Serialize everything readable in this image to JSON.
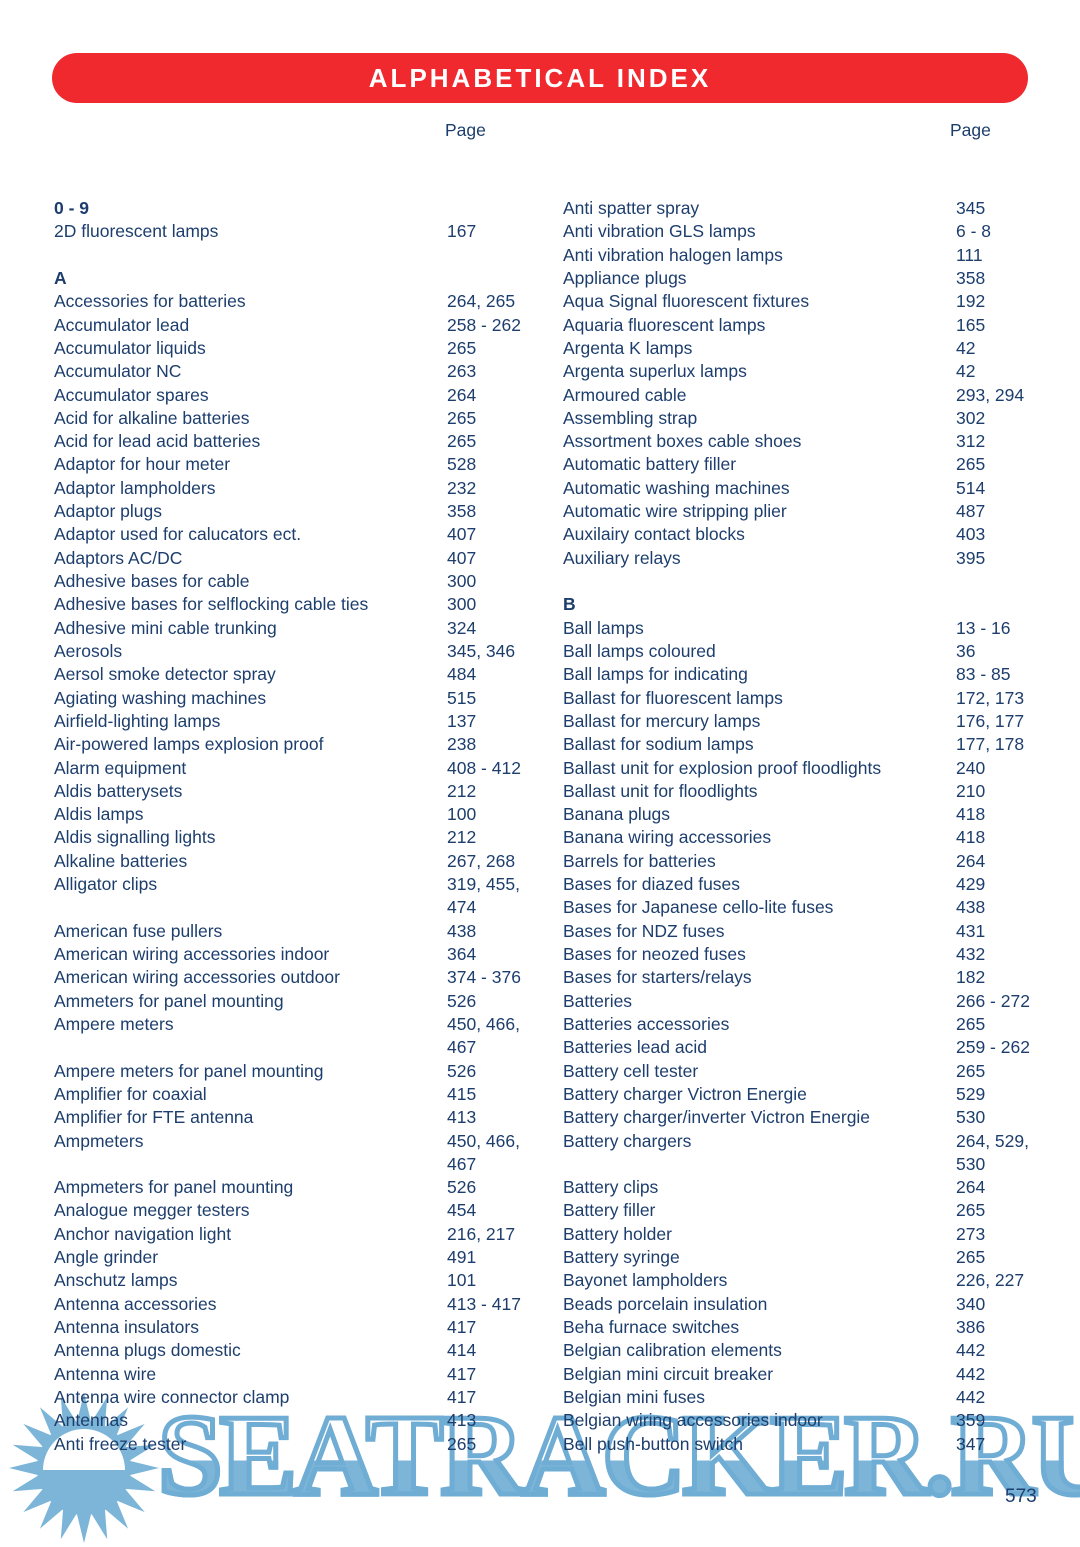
{
  "header": {
    "title": "ALPHABETICAL INDEX",
    "page_label": "Page"
  },
  "index": {
    "left": [
      {
        "type": "section",
        "label": "0 - 9"
      },
      {
        "type": "entry",
        "label": "2D fluorescent lamps",
        "pages": "167"
      },
      {
        "type": "section",
        "label": "A"
      },
      {
        "type": "entry",
        "label": "Accessories for batteries",
        "pages": "264, 265"
      },
      {
        "type": "entry",
        "label": "Accumulator lead",
        "pages": "258 - 262"
      },
      {
        "type": "entry",
        "label": "Accumulator liquids",
        "pages": "265"
      },
      {
        "type": "entry",
        "label": "Accumulator NC",
        "pages": "263"
      },
      {
        "type": "entry",
        "label": "Accumulator spares",
        "pages": "264"
      },
      {
        "type": "entry",
        "label": "Acid for alkaline batteries",
        "pages": "265"
      },
      {
        "type": "entry",
        "label": "Acid for lead acid batteries",
        "pages": "265"
      },
      {
        "type": "entry",
        "label": "Adaptor for hour meter",
        "pages": "528"
      },
      {
        "type": "entry",
        "label": "Adaptor lampholders",
        "pages": "232"
      },
      {
        "type": "entry",
        "label": "Adaptor plugs",
        "pages": "358"
      },
      {
        "type": "entry",
        "label": "Adaptor used for calucators ect.",
        "pages": "407"
      },
      {
        "type": "entry",
        "label": "Adaptors AC/DC",
        "pages": "407"
      },
      {
        "type": "entry",
        "label": "Adhesive bases for cable",
        "pages": "300"
      },
      {
        "type": "entry",
        "label": "Adhesive bases for selflocking cable ties",
        "pages": "300"
      },
      {
        "type": "entry",
        "label": "Adhesive mini cable trunking",
        "pages": "324"
      },
      {
        "type": "entry",
        "label": "Aerosols",
        "pages": "345, 346"
      },
      {
        "type": "entry",
        "label": "Aersol smoke detector spray",
        "pages": "484"
      },
      {
        "type": "entry",
        "label": "Agiating washing machines",
        "pages": "515"
      },
      {
        "type": "entry",
        "label": "Airfield-lighting lamps",
        "pages": "137"
      },
      {
        "type": "entry",
        "label": "Air-powered lamps explosion proof",
        "pages": "238"
      },
      {
        "type": "entry",
        "label": "Alarm equipment",
        "pages": "408 - 412"
      },
      {
        "type": "entry",
        "label": "Aldis batterysets",
        "pages": "212"
      },
      {
        "type": "entry",
        "label": "Aldis lamps",
        "pages": "100"
      },
      {
        "type": "entry",
        "label": "Aldis signalling lights",
        "pages": "212"
      },
      {
        "type": "entry",
        "label": "Alkaline batteries",
        "pages": "267, 268"
      },
      {
        "type": "entry",
        "label": "Alligator clips",
        "pages": "319, 455,\n474"
      },
      {
        "type": "entry",
        "label": "American fuse pullers",
        "pages": "438"
      },
      {
        "type": "entry",
        "label": "American wiring accessories indoor",
        "pages": "364"
      },
      {
        "type": "entry",
        "label": "American wiring accessories outdoor",
        "pages": "374 - 376"
      },
      {
        "type": "entry",
        "label": "Ammeters for panel mounting",
        "pages": "526"
      },
      {
        "type": "entry",
        "label": "Ampere meters",
        "pages": "450, 466,\n467"
      },
      {
        "type": "entry",
        "label": "Ampere meters for panel mounting",
        "pages": "526"
      },
      {
        "type": "entry",
        "label": "Amplifier for coaxial",
        "pages": "415"
      },
      {
        "type": "entry",
        "label": "Amplifier for FTE antenna",
        "pages": "413"
      },
      {
        "type": "entry",
        "label": "Ampmeters",
        "pages": "450, 466,\n467"
      },
      {
        "type": "entry",
        "label": "Ampmeters for panel mounting",
        "pages": "526"
      },
      {
        "type": "entry",
        "label": "Analogue megger testers",
        "pages": "454"
      },
      {
        "type": "entry",
        "label": "Anchor navigation light",
        "pages": "216, 217"
      },
      {
        "type": "entry",
        "label": "Angle grinder",
        "pages": "491"
      },
      {
        "type": "entry",
        "label": "Anschutz lamps",
        "pages": "101"
      },
      {
        "type": "entry",
        "label": "Antenna accessories",
        "pages": "413 - 417"
      },
      {
        "type": "entry",
        "label": "Antenna insulators",
        "pages": "417"
      },
      {
        "type": "entry",
        "label": "Antenna plugs domestic",
        "pages": "414"
      },
      {
        "type": "entry",
        "label": "Antenna wire",
        "pages": "417"
      },
      {
        "type": "entry",
        "label": "Antenna wire connector clamp",
        "pages": "417"
      },
      {
        "type": "entry",
        "label": "Antennas",
        "pages": "413"
      },
      {
        "type": "entry",
        "label": "Anti freeze tester",
        "pages": "265"
      }
    ],
    "right": [
      {
        "type": "entry",
        "label": "Anti spatter spray",
        "pages": "345"
      },
      {
        "type": "entry",
        "label": "Anti vibration GLS lamps",
        "pages": "6 - 8"
      },
      {
        "type": "entry",
        "label": "Anti vibration halogen lamps",
        "pages": "111"
      },
      {
        "type": "entry",
        "label": "Appliance plugs",
        "pages": "358"
      },
      {
        "type": "entry",
        "label": "Aqua Signal fluorescent fixtures",
        "pages": "192"
      },
      {
        "type": "entry",
        "label": "Aquaria fluorescent lamps",
        "pages": "165"
      },
      {
        "type": "entry",
        "label": "Argenta K lamps",
        "pages": "42"
      },
      {
        "type": "entry",
        "label": "Argenta superlux lamps",
        "pages": "42"
      },
      {
        "type": "entry",
        "label": "Armoured cable",
        "pages": "293, 294"
      },
      {
        "type": "entry",
        "label": "Assembling strap",
        "pages": "302"
      },
      {
        "type": "entry",
        "label": "Assortment boxes cable shoes",
        "pages": "312"
      },
      {
        "type": "entry",
        "label": "Automatic battery filler",
        "pages": "265"
      },
      {
        "type": "entry",
        "label": "Automatic washing machines",
        "pages": "514"
      },
      {
        "type": "entry",
        "label": "Automatic wire stripping plier",
        "pages": "487"
      },
      {
        "type": "entry",
        "label": "Auxilairy contact blocks",
        "pages": "403"
      },
      {
        "type": "entry",
        "label": "Auxiliary relays",
        "pages": "395"
      },
      {
        "type": "section",
        "label": "B"
      },
      {
        "type": "entry",
        "label": "Ball lamps",
        "pages": "13 - 16"
      },
      {
        "type": "entry",
        "label": "Ball lamps coloured",
        "pages": "36"
      },
      {
        "type": "entry",
        "label": "Ball lamps for indicating",
        "pages": "83 - 85"
      },
      {
        "type": "entry",
        "label": "Ballast for fluorescent lamps",
        "pages": "172, 173"
      },
      {
        "type": "entry",
        "label": "Ballast for mercury lamps",
        "pages": "176, 177"
      },
      {
        "type": "entry",
        "label": "Ballast for sodium lamps",
        "pages": "177, 178"
      },
      {
        "type": "entry",
        "label": "Ballast unit for explosion proof floodlights",
        "pages": "240"
      },
      {
        "type": "entry",
        "label": "Ballast unit for floodlights",
        "pages": "210"
      },
      {
        "type": "entry",
        "label": "Banana plugs",
        "pages": "418"
      },
      {
        "type": "entry",
        "label": "Banana wiring accessories",
        "pages": "418"
      },
      {
        "type": "entry",
        "label": "Barrels for batteries",
        "pages": "264"
      },
      {
        "type": "entry",
        "label": "Bases for diazed fuses",
        "pages": "429"
      },
      {
        "type": "entry",
        "label": "Bases for Japanese cello-lite fuses",
        "pages": "438"
      },
      {
        "type": "entry",
        "label": "Bases for NDZ fuses",
        "pages": "431"
      },
      {
        "type": "entry",
        "label": "Bases for neozed fuses",
        "pages": "432"
      },
      {
        "type": "entry",
        "label": "Bases for starters/relays",
        "pages": "182"
      },
      {
        "type": "entry",
        "label": "Batteries",
        "pages": "266 - 272"
      },
      {
        "type": "entry",
        "label": "Batteries accessories",
        "pages": "265"
      },
      {
        "type": "entry",
        "label": "Batteries lead acid",
        "pages": "259 - 262"
      },
      {
        "type": "entry",
        "label": "Battery cell tester",
        "pages": "265"
      },
      {
        "type": "entry",
        "label": "Battery charger Victron Energie",
        "pages": "529"
      },
      {
        "type": "entry",
        "label": "Battery charger/inverter Victron Energie",
        "pages": "530"
      },
      {
        "type": "entry",
        "label": "Battery chargers",
        "pages": "264, 529,\n530"
      },
      {
        "type": "entry",
        "label": "Battery clips",
        "pages": "264"
      },
      {
        "type": "entry",
        "label": "Battery filler",
        "pages": "265"
      },
      {
        "type": "entry",
        "label": "Battery holder",
        "pages": "273"
      },
      {
        "type": "entry",
        "label": "Battery syringe",
        "pages": "265"
      },
      {
        "type": "entry",
        "label": "Bayonet lampholders",
        "pages": "226, 227"
      },
      {
        "type": "entry",
        "label": "Beads porcelain insulation",
        "pages": "340"
      },
      {
        "type": "entry",
        "label": "Beha furnace switches",
        "pages": "386"
      },
      {
        "type": "entry",
        "label": "Belgian calibration elements",
        "pages": "442"
      },
      {
        "type": "entry",
        "label": "Belgian mini circuit breaker",
        "pages": "442"
      },
      {
        "type": "entry",
        "label": "Belgian mini fuses",
        "pages": "442"
      },
      {
        "type": "entry",
        "label": "Belgian wiring accessories indoor",
        "pages": "359"
      },
      {
        "type": "entry",
        "label": "Bell push-button switch",
        "pages": "347"
      }
    ]
  },
  "watermark": {
    "text": "SEATRACKER.RU",
    "sun_icon": "sun-starburst"
  },
  "footer": {
    "page_number": "573"
  },
  "colors": {
    "banner_red": "#f0292f",
    "text_navy": "#1d3e6d",
    "watermark_blue": "#7cb5d8",
    "watermark_stroke": "#6fadd4",
    "page_background": "#ffffff"
  }
}
